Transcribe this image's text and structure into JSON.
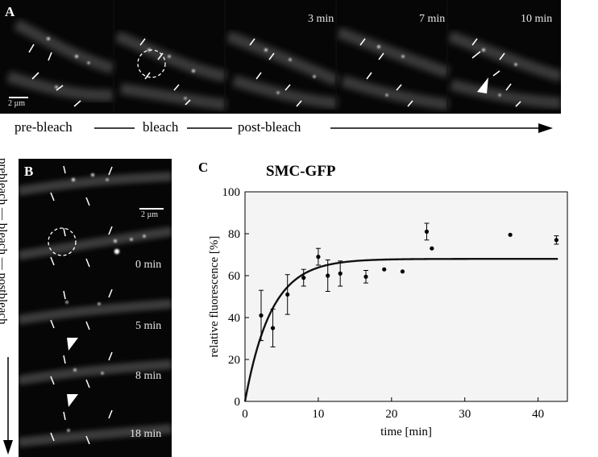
{
  "figure": {
    "panel_a": {
      "label": "A",
      "scale_bar": "2 µm",
      "timepoints": [
        "",
        "",
        "3 min",
        "7 min",
        "10 min"
      ],
      "sequence": [
        "pre-bleach",
        "bleach",
        "post-bleach"
      ]
    },
    "panel_b": {
      "label": "B",
      "scale_bar": "2 µm",
      "timepoints": [
        "",
        "0 min",
        "5 min",
        "8 min",
        "18 min"
      ],
      "sequence": [
        "prebleach",
        "bleach",
        "postbleach"
      ]
    },
    "panel_c": {
      "label": "C",
      "title": "SMC-GFP"
    }
  },
  "chart_data": {
    "type": "scatter",
    "title": "SMC-GFP",
    "xlabel": "time [min]",
    "ylabel": "relative fluorescence [%]",
    "xlim": [
      0,
      44
    ],
    "ylim": [
      0,
      100
    ],
    "xticks": [
      0,
      10,
      20,
      30,
      40
    ],
    "yticks": [
      0,
      20,
      40,
      60,
      80,
      100
    ],
    "grid": false,
    "points": [
      {
        "x": 2.2,
        "y": 41,
        "err": 12
      },
      {
        "x": 3.8,
        "y": 35,
        "err": 9
      },
      {
        "x": 5.8,
        "y": 51,
        "err": 9.5
      },
      {
        "x": 8.0,
        "y": 59,
        "err": 4
      },
      {
        "x": 10.0,
        "y": 69,
        "err": 4
      },
      {
        "x": 11.3,
        "y": 60,
        "err": 7.5
      },
      {
        "x": 13.0,
        "y": 61,
        "err": 6
      },
      {
        "x": 16.5,
        "y": 59.5,
        "err": 3
      },
      {
        "x": 19.0,
        "y": 63,
        "err": 0
      },
      {
        "x": 21.5,
        "y": 62,
        "err": 0
      },
      {
        "x": 24.8,
        "y": 81,
        "err": 4
      },
      {
        "x": 25.5,
        "y": 73,
        "err": 0
      },
      {
        "x": 36.2,
        "y": 79.5,
        "err": 0
      },
      {
        "x": 42.5,
        "y": 77,
        "err": 2
      }
    ],
    "fit": {
      "type": "exponential-recovery",
      "plateau": 68,
      "k": 0.28,
      "x_range": [
        0,
        42.7
      ]
    }
  }
}
